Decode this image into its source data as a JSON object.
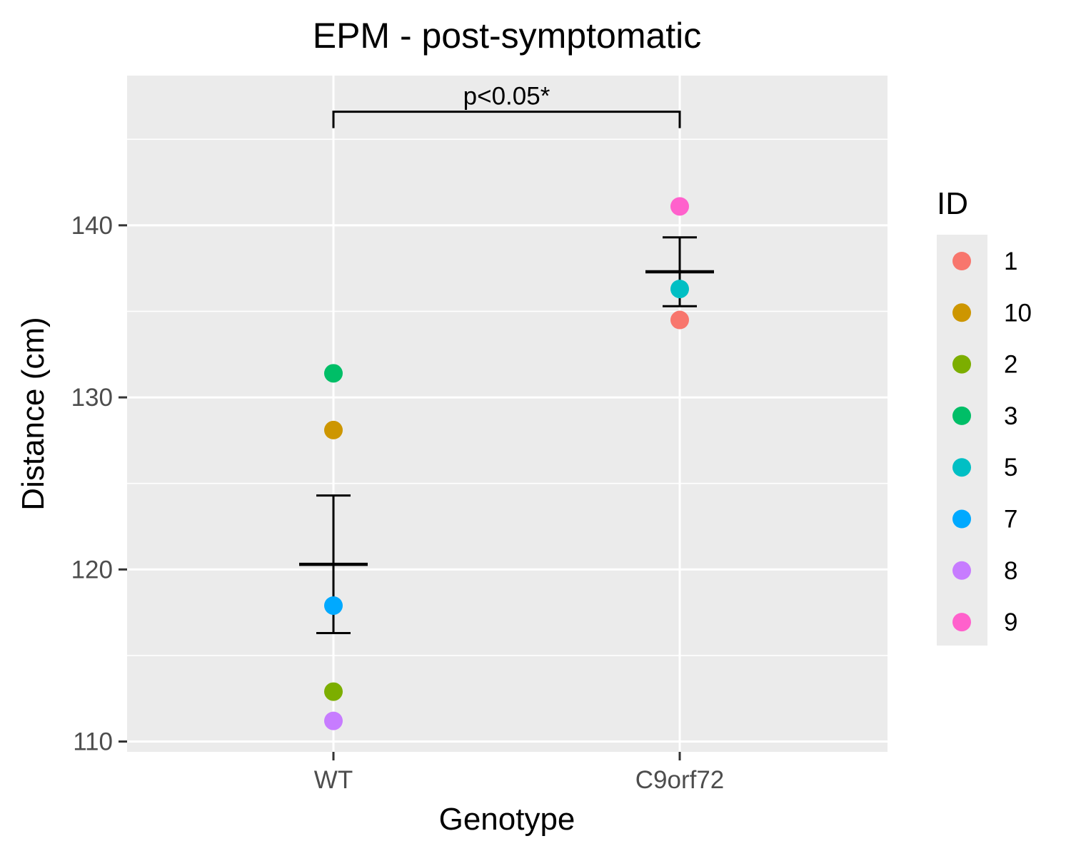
{
  "chart_data": {
    "type": "scatter",
    "title": "EPM - post-symptomatic",
    "xlabel": "Genotype",
    "ylabel": "Distance (cm)",
    "categories": [
      "WT",
      "C9orf72"
    ],
    "ylim": [
      109.4,
      148.7
    ],
    "yticks": [
      110,
      120,
      130,
      140
    ],
    "grid": true,
    "legend": {
      "title": "ID",
      "placement": "right",
      "entries": [
        {
          "label": "1",
          "color": "#F8766D"
        },
        {
          "label": "10",
          "color": "#CD9600"
        },
        {
          "label": "2",
          "color": "#7CAE00"
        },
        {
          "label": "3",
          "color": "#00BE67"
        },
        {
          "label": "5",
          "color": "#00BFC4"
        },
        {
          "label": "7",
          "color": "#00A9FF"
        },
        {
          "label": "8",
          "color": "#C77CFF"
        },
        {
          "label": "9",
          "color": "#FF61CC"
        }
      ]
    },
    "points": [
      {
        "x": "WT",
        "y": 131.4,
        "id": "3"
      },
      {
        "x": "WT",
        "y": 128.1,
        "id": "10"
      },
      {
        "x": "WT",
        "y": 117.9,
        "id": "7"
      },
      {
        "x": "WT",
        "y": 112.9,
        "id": "2"
      },
      {
        "x": "WT",
        "y": 111.2,
        "id": "8"
      },
      {
        "x": "C9orf72",
        "y": 141.1,
        "id": "9"
      },
      {
        "x": "C9orf72",
        "y": 136.3,
        "id": "5"
      },
      {
        "x": "C9orf72",
        "y": 134.5,
        "id": "1"
      }
    ],
    "summary": [
      {
        "x": "WT",
        "mean": 120.3,
        "lower": 116.3,
        "upper": 124.3
      },
      {
        "x": "C9orf72",
        "mean": 137.3,
        "lower": 135.3,
        "upper": 139.3
      }
    ],
    "annotation": {
      "text": "p<0.05*",
      "from": "WT",
      "to": "C9orf72",
      "y": 146.6
    }
  }
}
